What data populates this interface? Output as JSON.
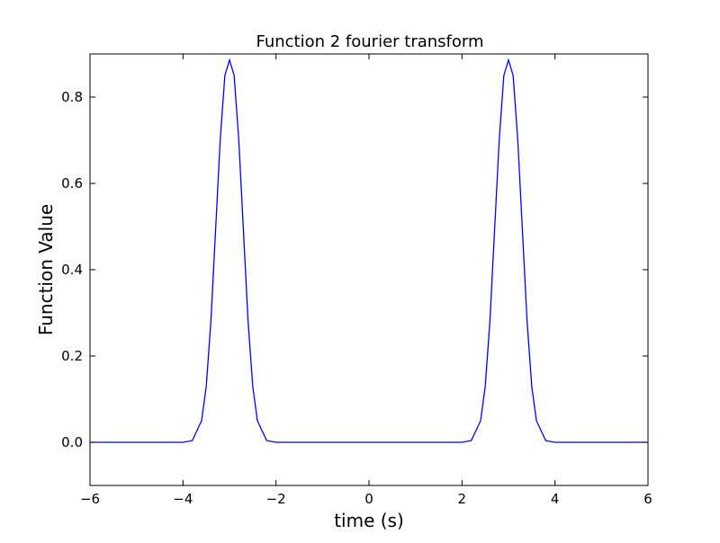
{
  "chart_data": {
    "type": "line",
    "title": "Function 2 fourier transform",
    "xlabel": "time (s)",
    "ylabel": "Function Value",
    "xlim": [
      -6,
      6
    ],
    "ylim": [
      -0.1,
      0.9
    ],
    "xticks": [
      -6,
      -4,
      -2,
      0,
      2,
      4,
      6
    ],
    "xtick_labels": [
      "−6",
      "−4",
      "−2",
      "0",
      "2",
      "4",
      "6"
    ],
    "yticks": [
      0.0,
      0.2,
      0.4,
      0.6,
      0.8
    ],
    "ytick_labels": [
      "0.0",
      "0.2",
      "0.4",
      "0.6",
      "0.8"
    ],
    "grid": false,
    "legend": "none",
    "line_color": "#0000ff",
    "series": [
      {
        "x": [
          -6.0,
          -4.2,
          -4.0,
          -3.8,
          -3.6,
          -3.5,
          -3.4,
          -3.3,
          -3.2,
          -3.1,
          -3.0,
          -2.9,
          -2.8,
          -2.7,
          -2.6,
          -2.5,
          -2.4,
          -2.2,
          -2.0,
          0.0,
          2.0,
          2.2,
          2.4,
          2.5,
          2.6,
          2.7,
          2.8,
          2.9,
          3.0,
          3.1,
          3.2,
          3.3,
          3.4,
          3.5,
          3.6,
          3.8,
          4.0,
          4.2,
          6.0
        ],
        "y": [
          0.0,
          0.0,
          0.0,
          0.004,
          0.05,
          0.13,
          0.28,
          0.49,
          0.7,
          0.85,
          0.886,
          0.85,
          0.7,
          0.49,
          0.28,
          0.13,
          0.05,
          0.004,
          0.0,
          0.0,
          0.0,
          0.004,
          0.05,
          0.13,
          0.28,
          0.49,
          0.7,
          0.85,
          0.886,
          0.85,
          0.7,
          0.49,
          0.28,
          0.13,
          0.05,
          0.004,
          0.0,
          0.0,
          0.0
        ]
      }
    ]
  }
}
